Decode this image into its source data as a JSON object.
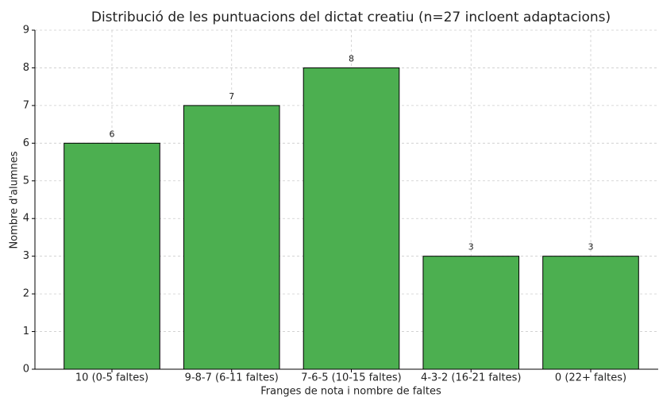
{
  "chart_data": {
    "type": "bar",
    "title": "Distribució de les puntuacions del dictat creatiu (n=27 incloent adaptacions)",
    "xlabel": "Franges de nota i nombre de faltes",
    "ylabel": "Nombre d'alumnes",
    "categories": [
      "10 (0-5 faltes)",
      "9-8-7 (6-11 faltes)",
      "7-6-5 (10-15 faltes)",
      "4-3-2 (16-21 faltes)",
      "0 (22+ faltes)"
    ],
    "values": [
      6,
      7,
      8,
      3,
      3
    ],
    "color": "#4caf50",
    "ylim": [
      0,
      9
    ],
    "yticks": [
      0,
      1,
      2,
      3,
      4,
      5,
      6,
      7,
      8,
      9
    ],
    "grid": true
  }
}
